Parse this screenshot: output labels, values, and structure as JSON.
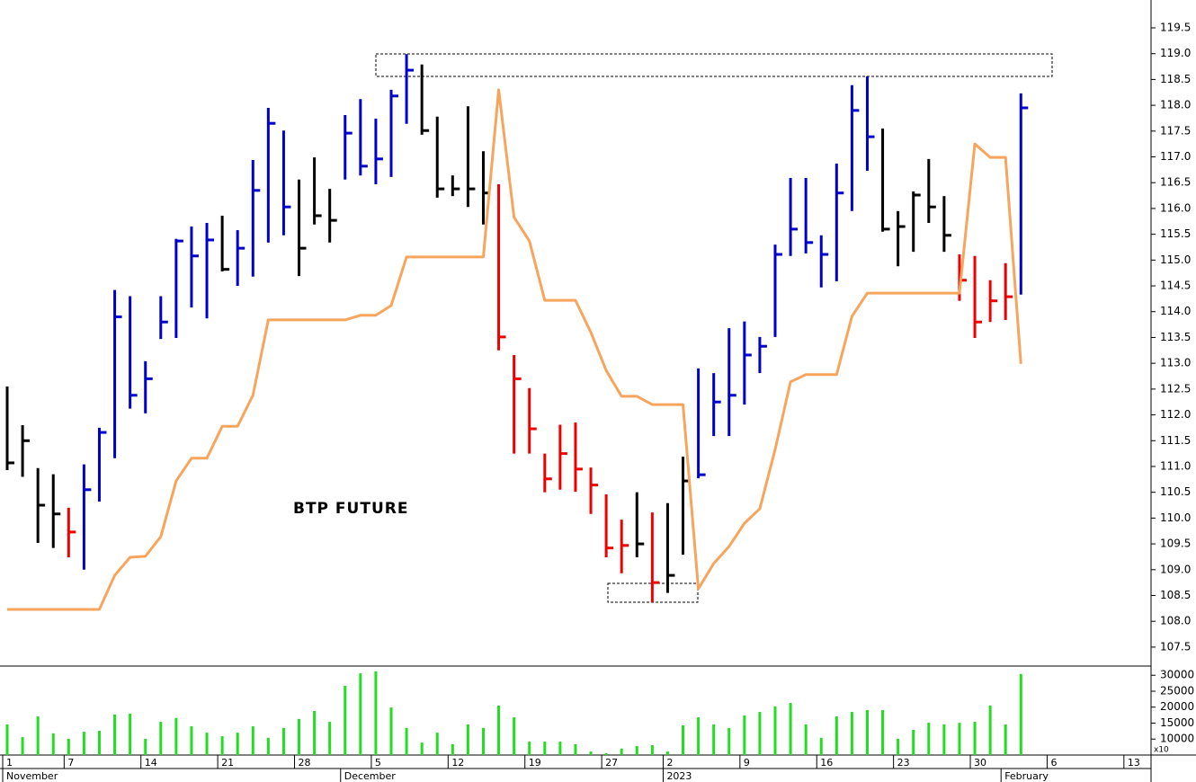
{
  "chart_data": [
    {
      "type": "ohlc",
      "annotation": "BTP FUTURE",
      "ylim": [
        107.15,
        120.04
      ],
      "yticks": [
        107.5,
        {
          "value": 108,
          "label": "108.0"
        },
        108.5,
        {
          "value": 109,
          "label": "109.0"
        },
        109.5,
        {
          "value": 110,
          "label": "110.0"
        },
        110.5,
        {
          "value": 111,
          "label": "111.0"
        },
        111.5,
        {
          "value": 112,
          "label": "112.0"
        },
        112.5,
        {
          "value": 113,
          "label": "113.0"
        },
        113.5,
        {
          "value": 114,
          "label": "114.0"
        },
        114.5,
        {
          "value": 115,
          "label": "115.0"
        },
        115.5,
        {
          "value": 116,
          "label": "116.0"
        },
        116.5,
        {
          "value": 117,
          "label": "117.0"
        },
        117.5,
        {
          "value": 118,
          "label": "118.0"
        },
        118.5,
        {
          "value": 119,
          "label": "119.0"
        },
        119.5
      ],
      "bars": {
        "high": [
          112.55,
          111.8,
          110.97,
          110.85,
          110.2,
          111.04,
          111.75,
          114.42,
          114.3,
          113.04,
          114.3,
          115.41,
          115.65,
          115.72,
          115.86,
          115.58,
          116.94,
          117.95,
          117.51,
          116.56,
          116.99,
          116.38,
          117.81,
          118.12,
          117.74,
          118.3,
          118.99,
          118.79,
          117.78,
          116.64,
          117.98,
          117.11,
          116.47,
          113.16,
          112.52,
          111.25,
          111.81,
          111.85,
          110.98,
          110.46,
          109.97,
          110.5,
          110.11,
          110.29,
          111.19,
          112.9,
          112.81,
          113.68,
          113.81,
          113.51,
          115.3,
          116.59,
          116.59,
          115.48,
          116.87,
          118.39,
          118.56,
          117.55,
          115.95,
          116.33,
          116.96,
          116.24,
          115.11,
          115.08,
          114.61,
          114.94,
          118.23
        ],
        "low": [
          110.93,
          110.8,
          109.52,
          109.42,
          109.24,
          109.0,
          110.32,
          111.16,
          112.12,
          112.03,
          113.47,
          113.49,
          114.08,
          113.87,
          114.78,
          114.5,
          114.68,
          115.34,
          115.48,
          114.69,
          115.69,
          115.34,
          116.56,
          116.64,
          116.47,
          116.61,
          117.64,
          117.43,
          116.21,
          116.24,
          116.03,
          115.69,
          113.25,
          111.25,
          111.25,
          110.5,
          110.55,
          110.51,
          110.08,
          109.24,
          108.93,
          109.24,
          108.37,
          108.55,
          109.29,
          110.77,
          111.59,
          111.59,
          112.2,
          112.81,
          113.51,
          115.08,
          115.13,
          114.47,
          114.59,
          115.95,
          116.73,
          115.55,
          114.88,
          115.16,
          115.72,
          115.16,
          114.21,
          113.49,
          113.8,
          113.84,
          114.33
        ],
        "close": [
          111.07,
          111.5,
          110.25,
          110.08,
          109.73,
          110.55,
          111.66,
          113.9,
          112.38,
          112.7,
          113.8,
          115.37,
          115.08,
          115.39,
          114.82,
          115.23,
          116.35,
          117.65,
          116.03,
          115.23,
          115.86,
          115.77,
          117.46,
          116.82,
          116.96,
          118.18,
          118.68,
          117.51,
          116.38,
          116.38,
          116.38,
          116.3,
          113.51,
          112.7,
          111.73,
          110.76,
          111.25,
          110.95,
          110.64,
          109.42,
          109.47,
          109.5,
          108.75,
          108.89,
          110.72,
          110.84,
          112.25,
          112.38,
          113.16,
          113.33,
          115.11,
          115.6,
          115.34,
          115.11,
          116.3,
          117.9,
          117.39,
          115.6,
          115.65,
          116.26,
          116.03,
          115.48,
          114.61,
          113.8,
          114.21,
          114.29,
          117.95
        ],
        "colors": [
          "#000000",
          "#000000",
          "#000000",
          "#000000",
          "#ee0000",
          "#0000cc",
          "#0000cc",
          "#0000cc",
          "#0000cc",
          "#0000cc",
          "#0000cc",
          "#0000cc",
          "#0000cc",
          "#0000cc",
          "#000000",
          "#0000cc",
          "#0000cc",
          "#0000cc",
          "#0000cc",
          "#000000",
          "#000000",
          "#000000",
          "#0000cc",
          "#0000cc",
          "#0000cc",
          "#0000cc",
          "#0000cc",
          "#000000",
          "#000000",
          "#000000",
          "#000000",
          "#000000",
          "#ee0000",
          "#ee0000",
          "#ee0000",
          "#ee0000",
          "#ee0000",
          "#ee0000",
          "#ee0000",
          "#ee0000",
          "#ee0000",
          "#000000",
          "#ee0000",
          "#000000",
          "#000000",
          "#0000cc",
          "#0000cc",
          "#0000cc",
          "#0000cc",
          "#0000cc",
          "#0000cc",
          "#0000cc",
          "#0000cc",
          "#0000cc",
          "#0000cc",
          "#0000cc",
          "#0000cc",
          "#000000",
          "#000000",
          "#000000",
          "#000000",
          "#000000",
          "#ee0000",
          "#ee0000",
          "#ee0000",
          "#ee0000",
          "#0000cc"
        ]
      },
      "line": {
        "color": "#f7a55c",
        "values": [
          108.23,
          108.23,
          108.23,
          108.23,
          108.23,
          108.23,
          108.23,
          108.89,
          109.24,
          109.26,
          109.64,
          110.72,
          111.16,
          111.16,
          111.78,
          111.78,
          112.38,
          113.84,
          113.84,
          113.84,
          113.84,
          113.84,
          113.84,
          113.93,
          113.93,
          114.12,
          115.06,
          115.06,
          115.06,
          115.06,
          115.06,
          115.06,
          118.3,
          115.83,
          115.37,
          114.22,
          114.22,
          114.22,
          113.6,
          112.86,
          112.36,
          112.36,
          112.2,
          112.2,
          112.2,
          108.63,
          109.12,
          109.45,
          109.9,
          110.18,
          111.33,
          112.64,
          112.78,
          112.78,
          112.78,
          113.91,
          114.36,
          114.36,
          114.36,
          114.36,
          114.36,
          114.36,
          114.36,
          117.25,
          116.99,
          116.99,
          112.99
        ]
      }
    },
    {
      "type": "bar",
      "color": "#22dd22",
      "unit_label": "x10",
      "ylim": [
        5000,
        32600
      ],
      "yticks": [
        10000,
        15000,
        20000,
        25000,
        30000
      ],
      "categories": [
        "1",
        null,
        null,
        null,
        "7",
        null,
        null,
        null,
        null,
        "14",
        null,
        null,
        null,
        null,
        "21",
        null,
        null,
        null,
        null,
        "28",
        null,
        null,
        null,
        null,
        "5",
        null,
        null,
        null,
        null,
        "12",
        null,
        null,
        null,
        null,
        "19",
        null,
        null,
        null,
        null,
        "27",
        null,
        null,
        null,
        "2",
        null,
        null,
        null,
        null,
        "9",
        null,
        null,
        null,
        null,
        "16",
        null,
        null,
        null,
        null,
        "23",
        null,
        null,
        null,
        null,
        "30",
        null,
        null,
        null,
        null,
        "6",
        null,
        null,
        null,
        null,
        "13"
      ],
      "months": [
        "November",
        null,
        null,
        null,
        null,
        null,
        null,
        null,
        null,
        null,
        null,
        null,
        null,
        null,
        null,
        null,
        null,
        null,
        null,
        null,
        null,
        null,
        "December",
        null,
        null,
        null,
        null,
        null,
        null,
        null,
        null,
        null,
        null,
        null,
        null,
        null,
        null,
        null,
        null,
        null,
        null,
        null,
        null,
        "2023",
        null,
        null,
        null,
        null,
        null,
        null,
        null,
        null,
        null,
        null,
        null,
        null,
        null,
        null,
        null,
        null,
        null,
        null,
        null,
        null,
        null,
        "February",
        null,
        null,
        null,
        null,
        null,
        null,
        null,
        null
      ],
      "values": [
        14600,
        10600,
        17100,
        11800,
        10100,
        12300,
        12600,
        17700,
        18000,
        10100,
        15400,
        16600,
        14000,
        12000,
        10900,
        12000,
        14000,
        10400,
        13500,
        16300,
        18800,
        15400,
        26700,
        30600,
        31200,
        19900,
        13500,
        8900,
        12000,
        8400,
        14600,
        13500,
        20500,
        16800,
        9200,
        9200,
        9200,
        8400,
        6100,
        5600,
        7000,
        7800,
        8100,
        6100,
        14300,
        16800,
        14600,
        13500,
        17400,
        18500,
        20200,
        21300,
        14600,
        10400,
        17100,
        18500,
        19100,
        19100,
        10100,
        12900,
        15100,
        14600,
        15100,
        15400,
        20500,
        14600,
        30400,
        null,
        null,
        null,
        null,
        null,
        null,
        null
      ]
    }
  ]
}
